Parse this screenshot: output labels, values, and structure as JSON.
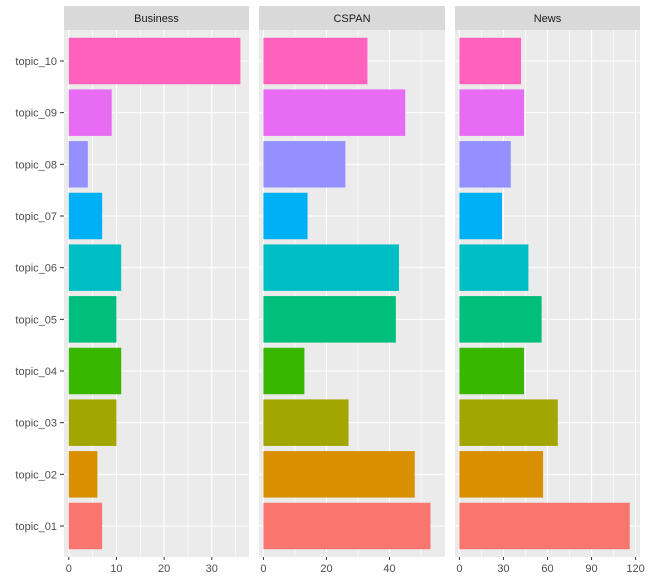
{
  "chart_data": {
    "type": "bar",
    "orientation": "horizontal",
    "facet_layout": "1x3, shared y-axis, free x-axis",
    "grid": true,
    "legend": "none",
    "categories": [
      "topic_01",
      "topic_02",
      "topic_03",
      "topic_04",
      "topic_05",
      "topic_06",
      "topic_07",
      "topic_08",
      "topic_09",
      "topic_10"
    ],
    "category_colors": [
      "#F8766D",
      "#D89000",
      "#A3A500",
      "#39B600",
      "#00BF7D",
      "#00BFC4",
      "#00B0F6",
      "#9590FF",
      "#E76BF3",
      "#FF62BC"
    ],
    "facets": [
      {
        "title": "Business",
        "values": [
          7,
          6,
          10,
          11,
          10,
          11,
          7,
          4,
          9,
          36
        ],
        "xlim": [
          -1,
          37.8
        ],
        "xticks": [
          0,
          10,
          20,
          30
        ],
        "xtick_labels": [
          "0",
          "10",
          "20",
          "30"
        ]
      },
      {
        "title": "CSPAN",
        "values": [
          53,
          48,
          27,
          13,
          42,
          43,
          14,
          26,
          45,
          33
        ],
        "xlim": [
          -1.4,
          57.6
        ],
        "xticks": [
          0,
          20,
          40
        ],
        "xtick_labels": [
          "0",
          "20",
          "40"
        ]
      },
      {
        "title": "News",
        "values": [
          116,
          57,
          67,
          44,
          56,
          47,
          29,
          35,
          44,
          42
        ],
        "xlim": [
          -3,
          123
        ],
        "xticks": [
          0,
          30,
          60,
          90,
          120
        ],
        "xtick_labels": [
          "0",
          "30",
          "60",
          "90",
          "120"
        ]
      }
    ]
  }
}
